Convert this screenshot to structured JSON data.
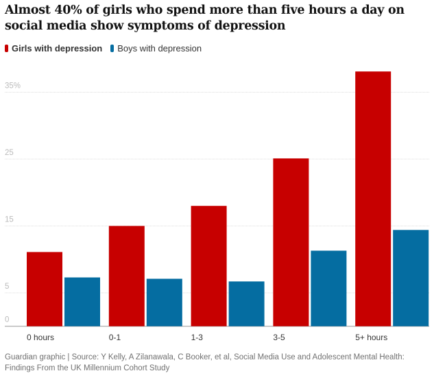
{
  "chart_data": {
    "type": "bar",
    "title": "Almost 40% of girls who spend more than five hours a day on social media show symptoms of depression",
    "categories": [
      "0 hours",
      "0-1",
      "1-3",
      "3-5",
      "5+ hours"
    ],
    "series": [
      {
        "name": "Girls with depression",
        "color": "#c70000",
        "values": [
          11.1,
          15.0,
          18.0,
          25.1,
          38.1
        ]
      },
      {
        "name": "Boys with depression",
        "color": "#056da1",
        "values": [
          7.3,
          7.1,
          6.7,
          11.3,
          14.4
        ]
      }
    ],
    "yticks": [
      0,
      5,
      15,
      25,
      35
    ],
    "ytick_labels": [
      "0",
      "5",
      "15",
      "25",
      "35%"
    ],
    "ylim": [
      0,
      40
    ],
    "xlabel": "",
    "ylabel": "",
    "grid": true,
    "legend": "top-left"
  },
  "source": "Guardian graphic | Source: Y Kelly, A Zilanawala, C Booker, et al, Social Media Use and Adolescent Mental Health: Findings From the UK Millennium Cohort Study"
}
